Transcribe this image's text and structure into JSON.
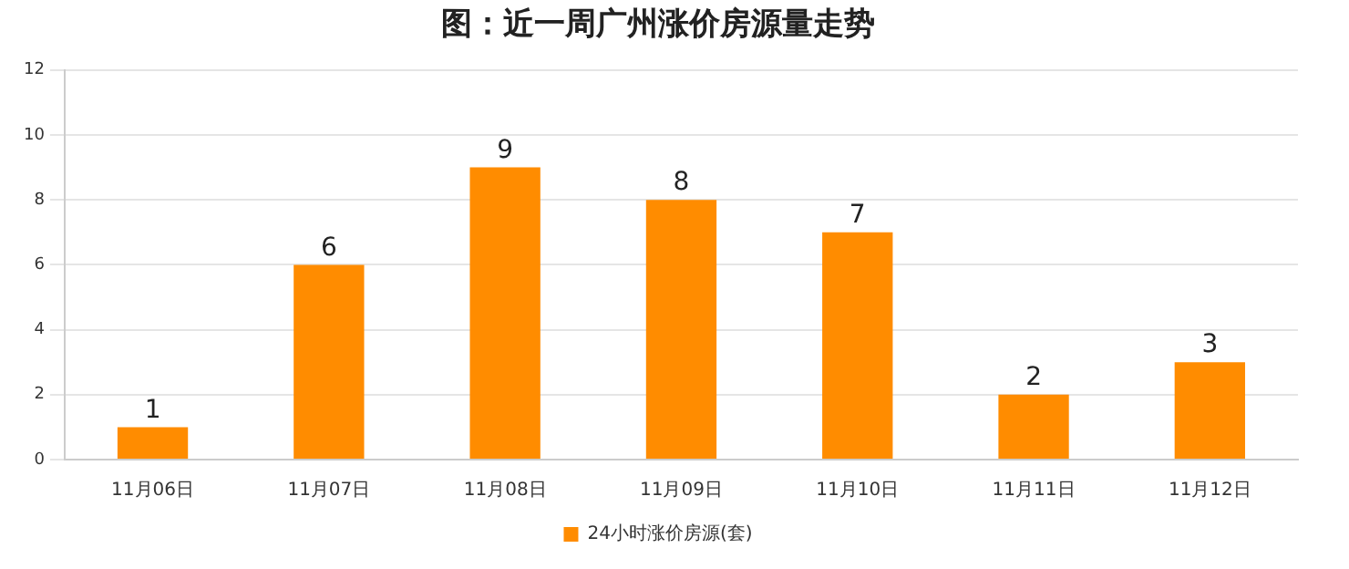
{
  "chart_data": {
    "type": "bar",
    "title": "图：近一周广州涨价房源量走势",
    "categories": [
      "11月06日",
      "11月07日",
      "11月08日",
      "11月09日",
      "11月10日",
      "11月11日",
      "11月12日"
    ],
    "series": [
      {
        "name": "24小时涨价房源(套)",
        "color": "#ff8c00",
        "values": [
          1,
          6,
          9,
          8,
          7,
          2,
          3
        ]
      }
    ],
    "ylim": [
      0,
      12
    ],
    "yticks": [
      0,
      2,
      4,
      6,
      8,
      10,
      12
    ],
    "grid": "y",
    "legend": "bottom",
    "data_labels": true
  }
}
